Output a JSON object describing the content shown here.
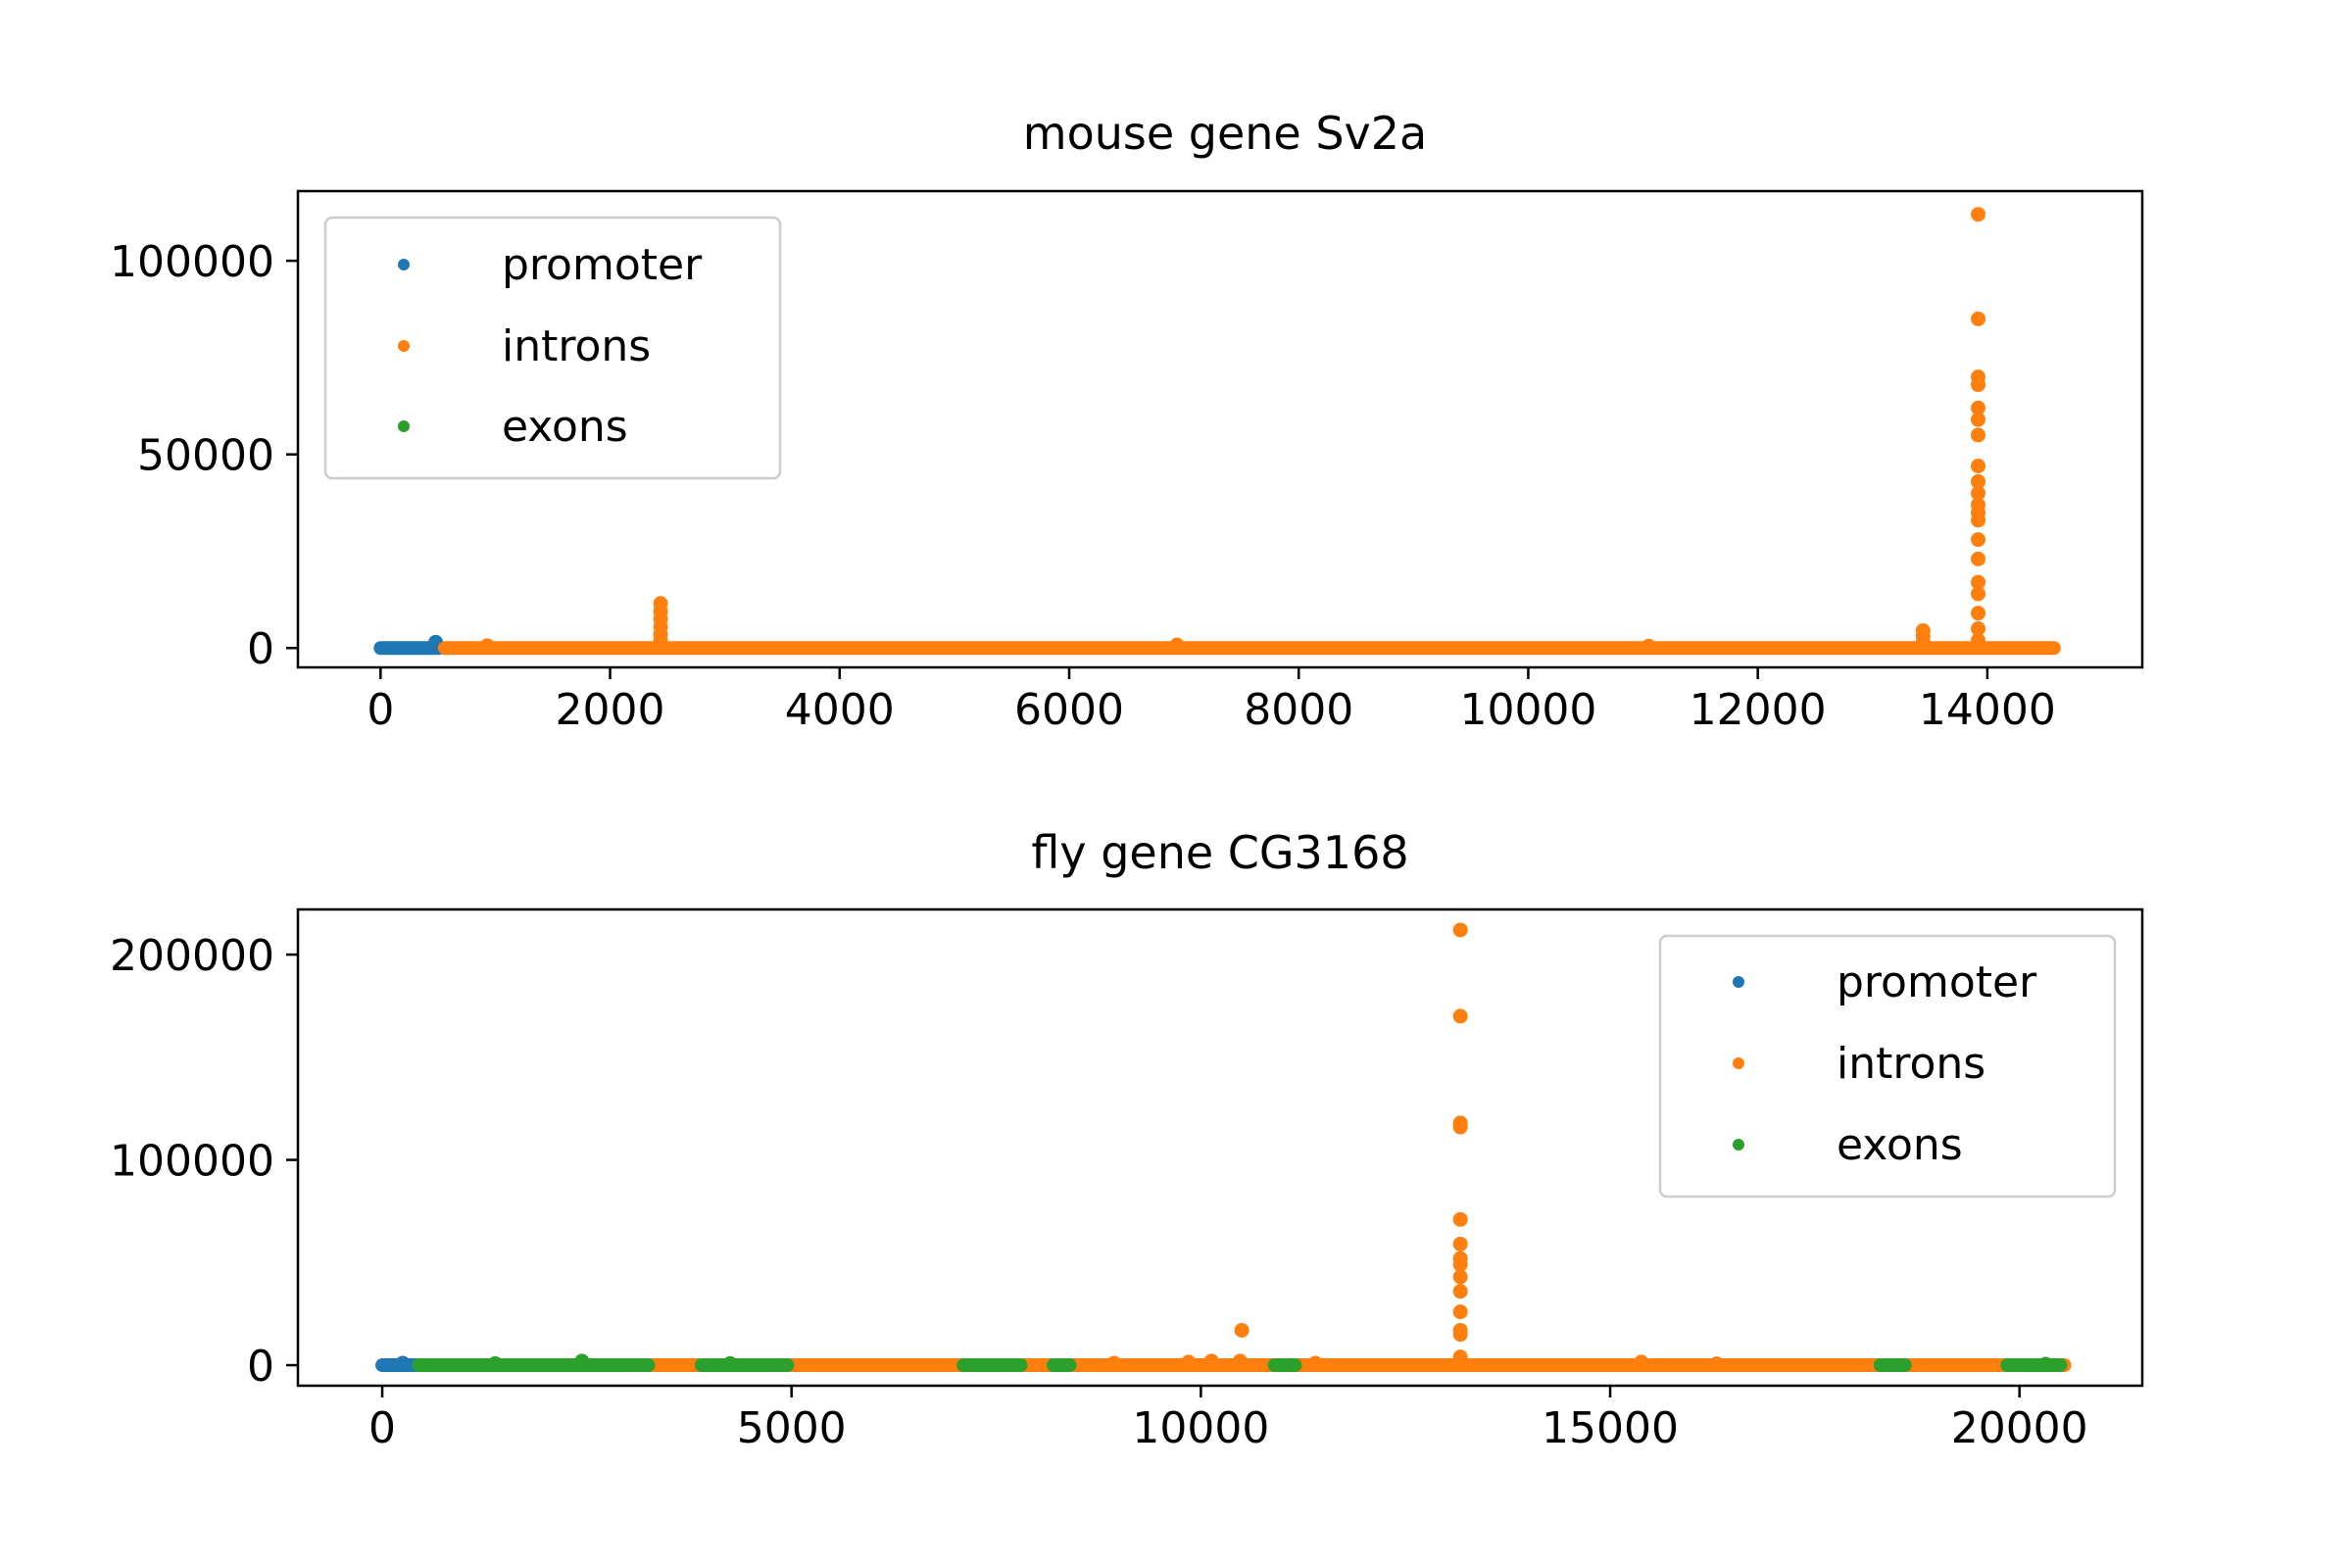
{
  "chart_data": [
    {
      "type": "scatter",
      "title": "mouse gene Sv2a",
      "xlabel": "",
      "ylabel": "",
      "xlim": [
        -720,
        15350
      ],
      "ylim": [
        -5000,
        118000
      ],
      "xticks": [
        0,
        2000,
        4000,
        6000,
        8000,
        10000,
        12000,
        14000
      ],
      "yticks": [
        0,
        50000,
        100000
      ],
      "grid": false,
      "legend": {
        "placement": "upper left",
        "entries": [
          "promoter",
          "introns",
          "exons"
        ]
      },
      "series": [
        {
          "name": "promoter",
          "color": "#1f77b4",
          "baseline_ranges": [
            [
              0,
              510
            ]
          ],
          "points": [
            [
              480,
              1500
            ]
          ]
        },
        {
          "name": "introns",
          "color": "#ff7f0e",
          "baseline_ranges": [
            [
              560,
              14580
            ]
          ],
          "points": [
            [
              930,
              600
            ],
            [
              2440,
              11500
            ],
            [
              2440,
              9500
            ],
            [
              2440,
              7500
            ],
            [
              2440,
              5500
            ],
            [
              2440,
              3500
            ],
            [
              2440,
              2000
            ],
            [
              6940,
              800
            ],
            [
              11050,
              500
            ],
            [
              13440,
              4500
            ],
            [
              13440,
              3000
            ],
            [
              13440,
              1500
            ],
            [
              13920,
              112000
            ],
            [
              13920,
              85000
            ],
            [
              13920,
              70000
            ],
            [
              13920,
              68000
            ],
            [
              13920,
              62000
            ],
            [
              13920,
              59000
            ],
            [
              13920,
              55000
            ],
            [
              13920,
              47000
            ],
            [
              13920,
              43000
            ],
            [
              13920,
              40000
            ],
            [
              13920,
              37000
            ],
            [
              13920,
              35000
            ],
            [
              13920,
              33000
            ],
            [
              13920,
              28000
            ],
            [
              13920,
              23000
            ],
            [
              13920,
              17000
            ],
            [
              13920,
              14000
            ],
            [
              13920,
              9000
            ],
            [
              13920,
              5000
            ],
            [
              13920,
              2000
            ]
          ]
        },
        {
          "name": "exons",
          "color": "#2ca02c",
          "baseline_ranges": [],
          "points": []
        }
      ]
    },
    {
      "type": "scatter",
      "title": "fly gene CG3168",
      "xlabel": "",
      "ylabel": "",
      "xlim": [
        -1030,
        21500
      ],
      "ylim": [
        -10000,
        222000
      ],
      "xticks": [
        0,
        5000,
        10000,
        15000,
        20000
      ],
      "yticks": [
        0,
        100000,
        200000
      ],
      "grid": false,
      "legend": {
        "placement": "upper right",
        "entries": [
          "promoter",
          "introns",
          "exons"
        ]
      },
      "series": [
        {
          "name": "promoter",
          "color": "#1f77b4",
          "baseline_ranges": [
            [
              0,
              450
            ]
          ],
          "points": [
            [
              250,
              1000
            ]
          ]
        },
        {
          "name": "introns",
          "color": "#ff7f0e",
          "baseline_ranges": [
            [
              450,
              20550
            ]
          ],
          "points": [
            [
              8940,
              1000
            ],
            [
              9850,
              1500
            ],
            [
              10130,
              2000
            ],
            [
              10480,
              2000
            ],
            [
              10500,
              17000
            ],
            [
              11400,
              1000
            ],
            [
              15380,
              1500
            ],
            [
              16300,
              700
            ],
            [
              13170,
              212000
            ],
            [
              13170,
              170000
            ],
            [
              13170,
              118000
            ],
            [
              13170,
              116000
            ],
            [
              13170,
              71000
            ],
            [
              13170,
              59000
            ],
            [
              13170,
              52000
            ],
            [
              13170,
              49000
            ],
            [
              13170,
              43000
            ],
            [
              13170,
              36000
            ],
            [
              13170,
              26000
            ],
            [
              13170,
              17000
            ],
            [
              13170,
              15000
            ],
            [
              13170,
              4000
            ]
          ]
        },
        {
          "name": "exons",
          "color": "#2ca02c",
          "baseline_ranges": [
            [
              450,
              3250
            ],
            [
              3900,
              4950
            ],
            [
              7100,
              7800
            ],
            [
              8200,
              8400
            ],
            [
              10900,
              11150
            ],
            [
              18300,
              18600
            ],
            [
              19850,
              20500
            ]
          ],
          "points": [
            [
              1380,
              800
            ],
            [
              2440,
              2000
            ],
            [
              4250,
              800
            ],
            [
              20320,
              500
            ]
          ]
        }
      ]
    }
  ]
}
